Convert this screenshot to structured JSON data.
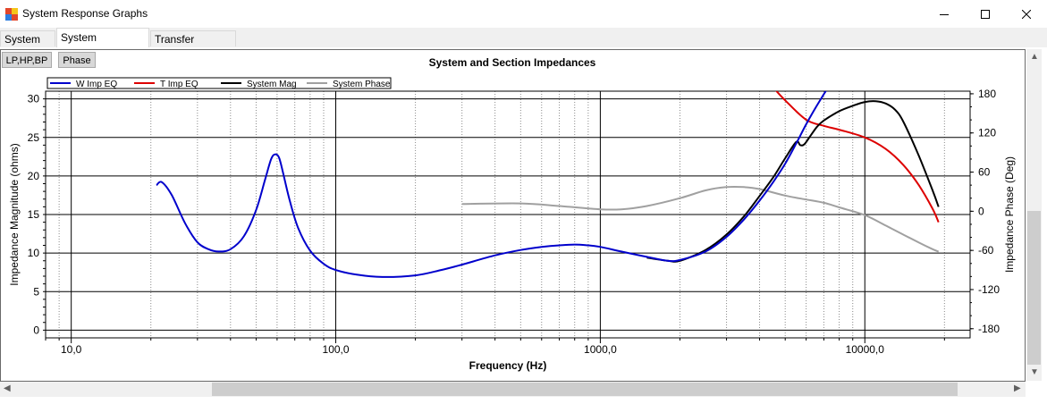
{
  "window": {
    "title": "System Response Graphs"
  },
  "tabs": [
    {
      "label": "System SPL"
    },
    {
      "label": "System Impedance"
    },
    {
      "label": "Transfer Functions"
    }
  ],
  "buttons": {
    "filter": "LP,HP,BP",
    "phase": "Phase"
  },
  "chart_data": {
    "type": "line",
    "title": "System and Section Impedances",
    "xlabel": "Frequency (Hz)",
    "ylabel": "Impedance Magnitude (ohms)",
    "y2label": "Impedance Phase (Deg)",
    "x_scale": "log",
    "xlim": [
      8,
      25000
    ],
    "ylim": [
      -1,
      31
    ],
    "y2lim": [
      -194,
      184
    ],
    "x_ticks": [
      10,
      100,
      1000,
      10000
    ],
    "x_tick_labels": [
      "10,0",
      "100,0",
      "1000,0",
      "10000,0"
    ],
    "y_ticks": [
      0,
      5,
      10,
      15,
      20,
      25,
      30
    ],
    "y_tick_labels": [
      "0",
      "5",
      "10",
      "15",
      "20",
      "25",
      "30"
    ],
    "y2_ticks": [
      -180,
      -120,
      -60,
      0,
      60,
      120,
      180
    ],
    "y2_tick_labels": [
      "-180",
      "-120",
      "-60",
      "0",
      "60",
      "120",
      "180"
    ],
    "grid": true,
    "legend_position": "top-left",
    "series": [
      {
        "name": "W Imp EQ",
        "color": "#0000cc",
        "axis": "left",
        "x": [
          21,
          22,
          24,
          27,
          30,
          33,
          36,
          40,
          45,
          50,
          54,
          57,
          59,
          61,
          63,
          67,
          72,
          80,
          90,
          100,
          120,
          150,
          200,
          250,
          300,
          400,
          500,
          600,
          700,
          800,
          900,
          1000,
          1200,
          1500,
          1800,
          2000,
          2500,
          3000,
          3500,
          4000,
          4500,
          5000,
          5500,
          6000,
          6500,
          7000,
          7200
        ],
        "y": [
          18.8,
          19.2,
          17.5,
          13.8,
          11.4,
          10.5,
          10.2,
          10.5,
          12.2,
          15.6,
          19.5,
          22.2,
          22.8,
          22.4,
          20.6,
          16.8,
          13.3,
          10.3,
          8.6,
          7.8,
          7.2,
          6.9,
          7.1,
          7.8,
          8.5,
          9.7,
          10.4,
          10.8,
          11.0,
          11.1,
          11.0,
          10.8,
          10.2,
          9.5,
          9.0,
          9.1,
          10.2,
          12.1,
          14.4,
          16.8,
          19.2,
          21.6,
          24.2,
          26.7,
          28.8,
          30.6,
          31.3
        ]
      },
      {
        "name": "T Imp EQ",
        "color": "#dd0000",
        "axis": "left",
        "x": [
          4500,
          5000,
          6000,
          7000,
          8000,
          10000,
          12000,
          14000,
          16000,
          18000,
          19000
        ],
        "y": [
          31.5,
          29.8,
          27.3,
          26.5,
          26.0,
          25.0,
          23.5,
          21.4,
          18.8,
          15.8,
          14.0
        ]
      },
      {
        "name": "System Mag",
        "color": "#000000",
        "axis": "left",
        "x": [
          1500,
          1800,
          2000,
          2500,
          3000,
          3500,
          4000,
          4500,
          5000,
          5500,
          5700,
          5900,
          6200,
          6600,
          7000,
          8000,
          9000,
          10000,
          11000,
          12000,
          13000,
          14000,
          16000,
          18000,
          19000
        ],
        "y": [
          9.4,
          9.0,
          9.0,
          10.4,
          12.4,
          14.8,
          17.4,
          19.8,
          22.3,
          24.4,
          24.0,
          24.1,
          25.1,
          26.4,
          27.2,
          28.4,
          29.1,
          29.6,
          29.7,
          29.4,
          28.6,
          27.0,
          22.6,
          18.2,
          16.0
        ]
      },
      {
        "name": "System Phase",
        "color": "#a0a0a0",
        "axis": "right",
        "x": [
          300,
          500,
          700,
          1000,
          1200,
          1500,
          2000,
          2500,
          3000,
          3500,
          4000,
          5000,
          6000,
          7000,
          8000,
          10000,
          12000,
          14000,
          16000,
          18000,
          19000
        ],
        "y": [
          11,
          12,
          8,
          3,
          3,
          8,
          20,
          32,
          37,
          37,
          34,
          24,
          18,
          13,
          6,
          -6,
          -22,
          -36,
          -48,
          -58,
          -62
        ]
      }
    ]
  }
}
